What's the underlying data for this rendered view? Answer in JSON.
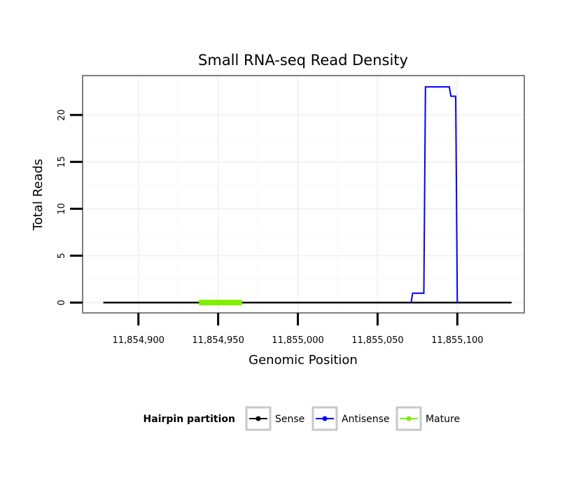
{
  "chart_data": {
    "type": "line",
    "title": "Small RNA-seq Read Density",
    "xlabel": "Genomic Position",
    "ylabel": "Total Reads",
    "xlim": [
      11854865,
      11855142
    ],
    "ylim": [
      -1.1,
      24.2
    ],
    "xticks": [
      11854900,
      11854950,
      11855000,
      11855050,
      11855100
    ],
    "xtick_labels": [
      "11,854,900",
      "11,854,950",
      "11,855,000",
      "11,855,050",
      "11,855,100"
    ],
    "yticks": [
      0,
      5,
      10,
      15,
      20
    ],
    "ytick_labels": [
      "0",
      "5",
      "10",
      "15",
      "20"
    ],
    "grid": true,
    "legend": {
      "title": "Hairpin partition",
      "position": "bottom"
    },
    "series": [
      {
        "name": "Sense",
        "color": "#000000",
        "x": [
          11854878,
          11855134
        ],
        "y": [
          0,
          0
        ]
      },
      {
        "name": "Antisense",
        "color": "#0000ff",
        "x": [
          11855071,
          11855072,
          11855079,
          11855080,
          11855095,
          11855096,
          11855099,
          11855100
        ],
        "y": [
          0,
          1,
          1,
          23,
          23,
          22,
          22,
          0
        ]
      },
      {
        "name": "Mature",
        "color": "#80ee00",
        "x": [
          11854938,
          11854965
        ],
        "y": [
          0,
          0
        ]
      }
    ]
  }
}
